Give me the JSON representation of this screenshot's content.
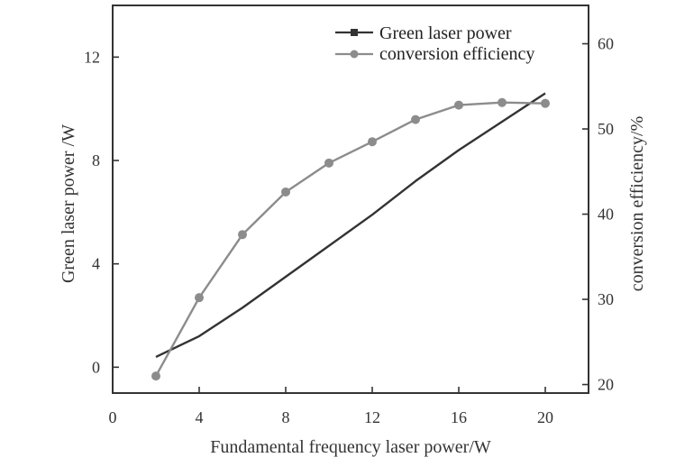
{
  "chart_data": {
    "type": "line",
    "xlabel": "Fundamental frequency laser power/W",
    "ylabel_left": "Green laser power /W",
    "ylabel_right": "conversion efficiency/%",
    "xlim": [
      0,
      22
    ],
    "ylim_left": [
      -1,
      14
    ],
    "ylim_right": [
      19,
      64.5
    ],
    "x_ticks": [
      0,
      4,
      8,
      12,
      16,
      20
    ],
    "y_left_ticks": [
      0,
      4,
      8,
      12
    ],
    "y_right_ticks": [
      20,
      30,
      40,
      50,
      60
    ],
    "grid": false,
    "legend_position": "top-right",
    "series": [
      {
        "name": "Green laser power",
        "axis": "left",
        "marker": "square",
        "color": "#333333",
        "x": [
          2,
          4,
          6,
          8,
          10,
          12,
          14,
          16,
          18,
          20
        ],
        "values": [
          0.4,
          1.2,
          2.3,
          3.5,
          4.7,
          5.9,
          7.2,
          8.4,
          9.5,
          10.6
        ]
      },
      {
        "name": "conversion efficiency",
        "axis": "right",
        "marker": "circle",
        "color": "#8c8c8c",
        "x": [
          2,
          4,
          6,
          8,
          10,
          12,
          14,
          16,
          18,
          20
        ],
        "values": [
          21.0,
          30.2,
          37.6,
          42.6,
          46.0,
          48.5,
          51.1,
          52.8,
          53.1,
          53.0
        ]
      }
    ]
  }
}
